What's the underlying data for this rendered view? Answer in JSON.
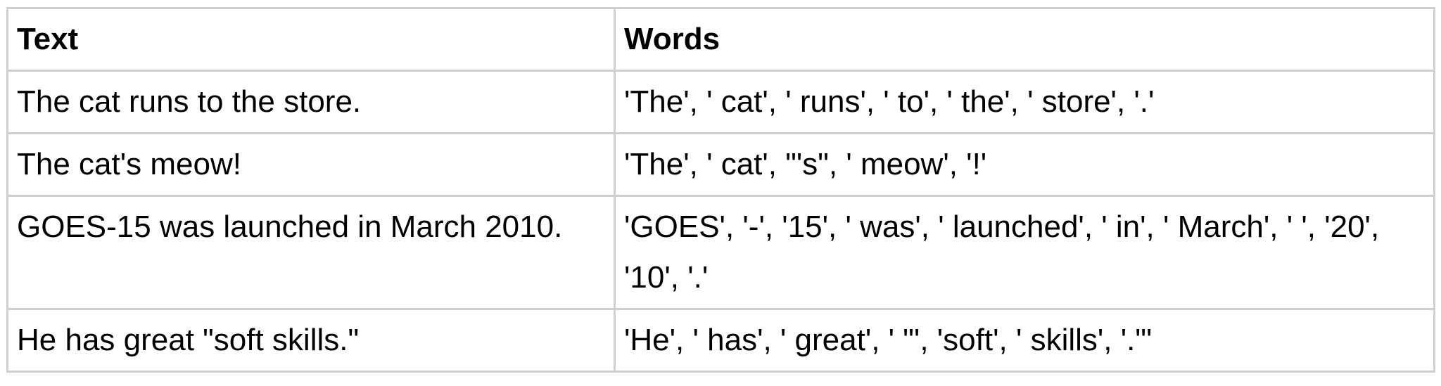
{
  "table": {
    "headers": [
      "Text",
      "Words"
    ],
    "rows": [
      [
        "The cat runs to the store.",
        "'The', ' cat', ' runs', ' to', ' the', ' store', '.'"
      ],
      [
        "The cat's meow!",
        "'The', ' cat', \"'s\", ' meow', '!'"
      ],
      [
        "GOES-15 was launched in March 2010.",
        "'GOES', '-', '15', ' was', ' launched', ' in', ' March', ' ', '20', '10', '.'"
      ],
      [
        "He has great \"soft skills.\"",
        "'He', ' has', ' great', ' \"', 'soft', ' skills', '.\"'"
      ]
    ]
  }
}
